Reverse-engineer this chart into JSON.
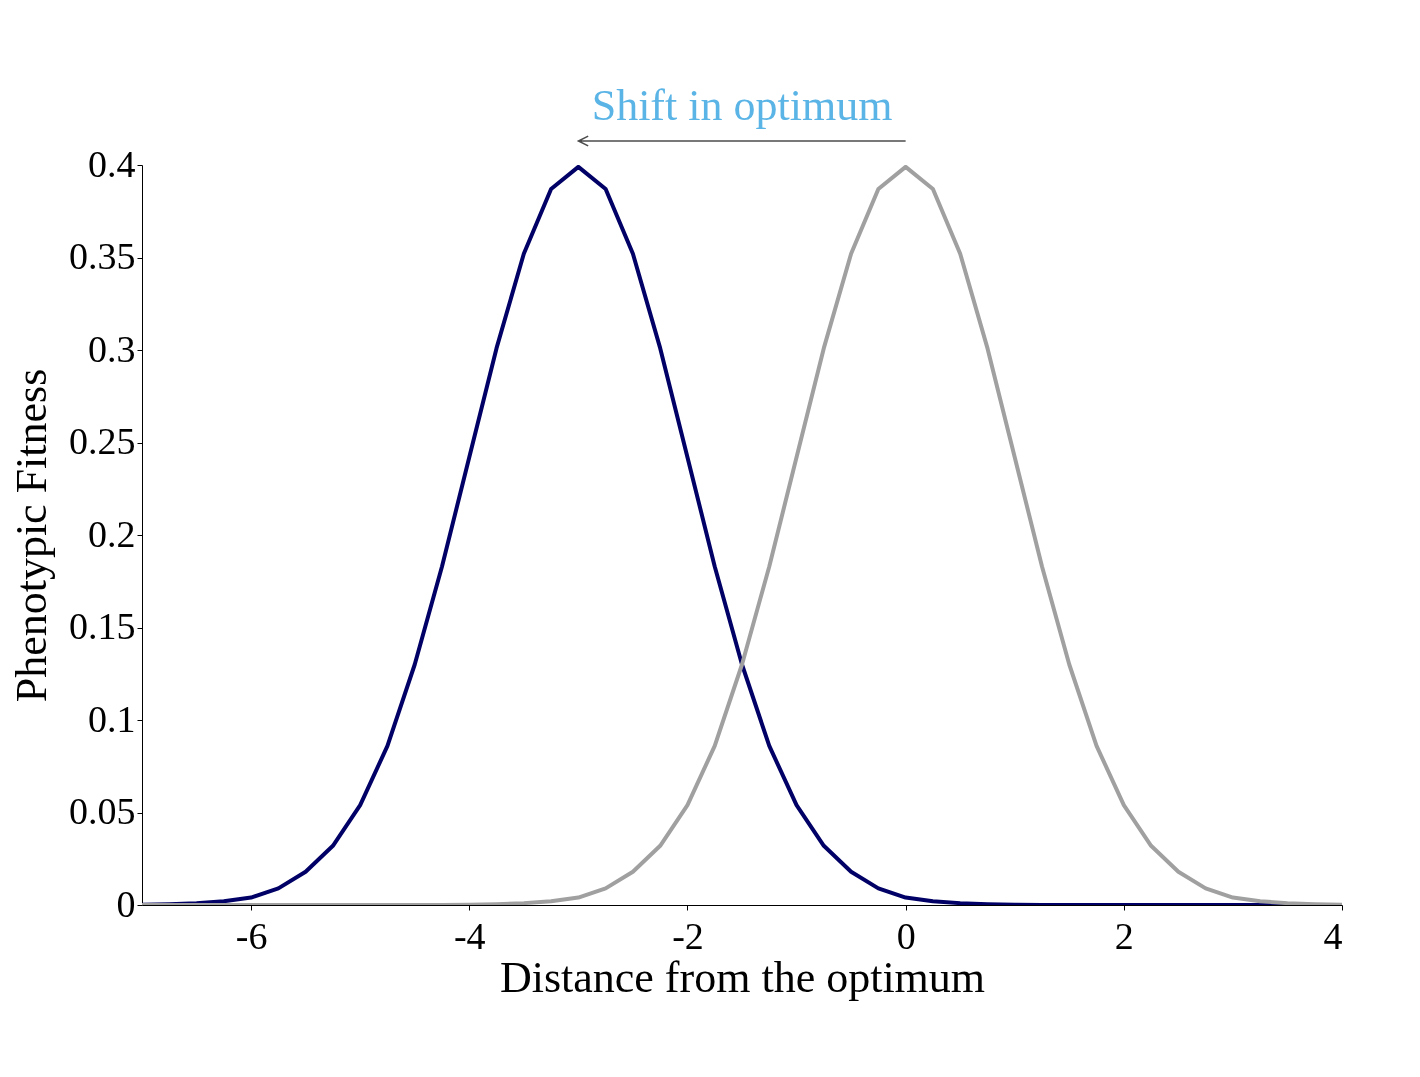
{
  "chart_data": {
    "type": "line",
    "xlabel": "Distance from the optimum",
    "ylabel": "Phenotypic Fitness",
    "x": [
      -7,
      -6.75,
      -6.5,
      -6.25,
      -6,
      -5.75,
      -5.5,
      -5.25,
      -5,
      -4.75,
      -4.5,
      -4.25,
      -4,
      -3.75,
      -3.5,
      -3.25,
      -3,
      -2.75,
      -2.5,
      -2.25,
      -2,
      -1.75,
      -1.5,
      -1.25,
      -1,
      -0.75,
      -0.5,
      -0.25,
      0,
      0.25,
      0.5,
      0.75,
      1,
      1.25,
      1.5,
      1.75,
      2,
      2.25,
      2.5,
      2.75,
      3,
      3.25,
      3.5,
      3.75,
      4
    ],
    "series": [
      {
        "color": "#000066",
        "values": [
          0.0001,
          0.0004,
          0.001,
          0.002,
          0.004,
          0.009,
          0.018,
          0.032,
          0.054,
          0.086,
          0.13,
          0.183,
          0.242,
          0.301,
          0.352,
          0.387,
          0.399,
          0.387,
          0.352,
          0.301,
          0.242,
          0.183,
          0.13,
          0.086,
          0.054,
          0.032,
          0.018,
          0.009,
          0.004,
          0.002,
          0.001,
          0.0004,
          0.0001,
          0,
          0,
          0,
          0,
          0,
          0,
          0,
          0,
          0,
          0,
          0,
          0
        ]
      },
      {
        "color": "#a0a0a0",
        "values": [
          0,
          0,
          0,
          0,
          0,
          0,
          0,
          0,
          0,
          0,
          0,
          0,
          0.0001,
          0.0004,
          0.001,
          0.002,
          0.004,
          0.009,
          0.018,
          0.032,
          0.054,
          0.086,
          0.13,
          0.183,
          0.242,
          0.301,
          0.352,
          0.387,
          0.399,
          0.387,
          0.352,
          0.301,
          0.242,
          0.183,
          0.13,
          0.086,
          0.054,
          0.032,
          0.018,
          0.009,
          0.004,
          0.002,
          0.001,
          0.0004,
          0.0001
        ]
      }
    ],
    "annotations": [
      "Shift in optimum"
    ],
    "xlim": [
      -7,
      4
    ],
    "xticks": [
      -6,
      -4,
      -2,
      0,
      2,
      4
    ],
    "ylim": [
      0,
      0.4
    ],
    "yticks": [
      0,
      0.05,
      0.1,
      0.15,
      0.2,
      0.25,
      0.3,
      0.35,
      0.4
    ],
    "grid": false,
    "legend": false,
    "marker": "none",
    "line_style": "solid"
  }
}
